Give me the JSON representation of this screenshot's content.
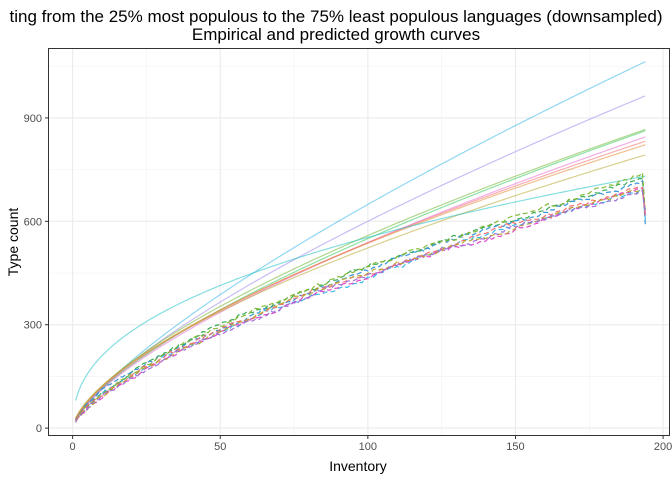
{
  "chart_data": {
    "type": "line",
    "title_line1": "ting from the 25% most populous to the 75% least populous languages (downsampled)",
    "title_line2": "Empirical and predicted growth curves",
    "xlabel": "Inventory",
    "ylabel": "Type count",
    "xlim": [
      -8,
      202
    ],
    "ylim": [
      -20,
      1100
    ],
    "x_ticks": [
      0,
      50,
      100,
      150,
      200
    ],
    "y_ticks": [
      0,
      300,
      600,
      900
    ],
    "grid": true,
    "legend": "none",
    "predicted_series": [
      {
        "color": "#35b7e8",
        "a": 21.0,
        "b": 0.745,
        "end": 1068
      },
      {
        "color": "#9f87ef",
        "a": 22.3,
        "b": 0.715,
        "end": 968
      },
      {
        "color": "#2ec65a",
        "a": 24.0,
        "b": 0.68,
        "end": 880
      },
      {
        "color": "#6fb72c",
        "a": 26.5,
        "b": 0.662,
        "end": 875
      },
      {
        "color": "#e66ad2",
        "a": 23.5,
        "b": 0.68,
        "end": 860
      },
      {
        "color": "#f26b6b",
        "a": 26.0,
        "b": 0.658,
        "end": 846
      },
      {
        "color": "#e38a31",
        "a": 27.5,
        "b": 0.645,
        "end": 826
      },
      {
        "color": "#b8a832",
        "a": 29.0,
        "b": 0.628,
        "end": 806
      },
      {
        "color": "#22c1c6",
        "a": 80.0,
        "b": 0.42,
        "end": 732
      }
    ],
    "empirical_series": [
      {
        "color": "#2ea84c",
        "a": 22,
        "b": 0.663,
        "seed": 11,
        "end": 626
      },
      {
        "color": "#35b7e8",
        "a": 20,
        "b": 0.673,
        "seed": 23,
        "end": 606
      },
      {
        "color": "#2d8fd6",
        "a": 21,
        "b": 0.67,
        "seed": 37,
        "end": 588
      },
      {
        "color": "#e040c8",
        "a": 19,
        "b": 0.682,
        "seed": 41,
        "end": 620
      },
      {
        "color": "#7fb52e",
        "a": 22,
        "b": 0.664,
        "seed": 53,
        "end": 624
      },
      {
        "color": "#f26b6b",
        "a": 21,
        "b": 0.667,
        "seed": 67,
        "end": 612
      },
      {
        "color": "#b8a832",
        "a": 20,
        "b": 0.674,
        "seed": 79,
        "end": 628
      },
      {
        "color": "#9f6bd6",
        "a": 20,
        "b": 0.672,
        "seed": 83,
        "end": 622
      }
    ]
  }
}
